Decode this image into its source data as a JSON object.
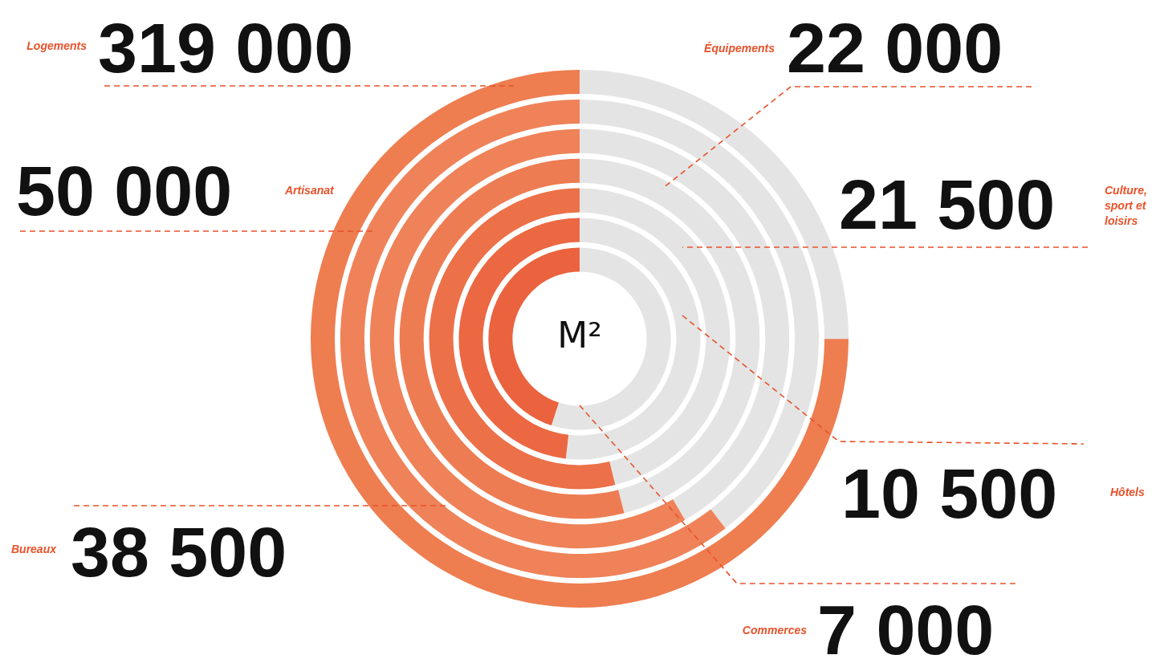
{
  "chart_data": {
    "type": "other",
    "categories": [
      "Logements",
      "Artisanat",
      "Bureaux",
      "Équipements",
      "Culture, sport et loisirs",
      "Hôtels",
      "Commerces"
    ],
    "values": [
      319000,
      50000,
      38500,
      22000,
      21500,
      10500,
      7000
    ],
    "colors": [
      "#ee7d50",
      "#ef8258",
      "#ef8258",
      "#ee7c52",
      "#ec7048",
      "#eb6842",
      "#ea633e"
    ],
    "data_labels": true,
    "annotations": [
      "M²"
    ]
  }
}
